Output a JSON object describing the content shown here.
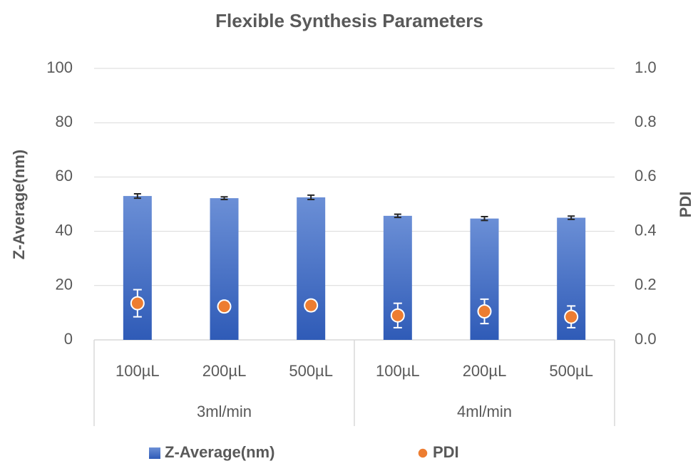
{
  "chart_data": {
    "type": "bar",
    "title": "Flexible Synthesis Parameters",
    "y_label": "Z-Average(nm)",
    "y2_label": "PDI",
    "groups": [
      {
        "label": "3ml/min",
        "categories": [
          "100µL",
          "200µL",
          "500µL"
        ]
      },
      {
        "label": "4ml/min",
        "categories": [
          "100µL",
          "200µL",
          "500µL"
        ]
      }
    ],
    "series": [
      {
        "name": "Z-Average(nm)",
        "type": "bar",
        "color": "#4472c4",
        "values": [
          53.0,
          52.2,
          52.5,
          45.7,
          44.7,
          45.0
        ],
        "errors": [
          0.8,
          0.5,
          0.8,
          0.6,
          0.7,
          0.6
        ]
      },
      {
        "name": "PDI",
        "type": "scatter",
        "axis": "y2",
        "color": "#ed7d31",
        "values": [
          0.135,
          0.123,
          0.127,
          0.09,
          0.105,
          0.085
        ],
        "errors": [
          0.05,
          0.02,
          0.02,
          0.045,
          0.045,
          0.04
        ]
      }
    ],
    "ylim": [
      0,
      100
    ],
    "yticks": [
      0,
      20,
      40,
      60,
      80,
      100
    ],
    "y2lim": [
      0,
      1
    ],
    "y2ticks": [
      {
        "value": 0,
        "label": "0.0"
      },
      0.2,
      0.4,
      0.6,
      0.8,
      {
        "value": 1,
        "label": "1.0"
      }
    ],
    "grid": true,
    "legend": "bottom"
  }
}
